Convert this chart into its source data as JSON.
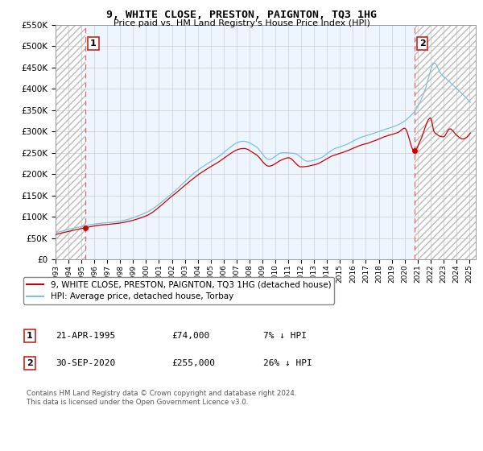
{
  "title": "9, WHITE CLOSE, PRESTON, PAIGNTON, TQ3 1HG",
  "subtitle": "Price paid vs. HM Land Registry's House Price Index (HPI)",
  "ylim": [
    0,
    550000
  ],
  "yticks": [
    0,
    50000,
    100000,
    150000,
    200000,
    250000,
    300000,
    350000,
    400000,
    450000,
    500000,
    550000
  ],
  "xmin": 1993.0,
  "xmax": 2025.5,
  "xticks": [
    1993,
    1994,
    1995,
    1996,
    1997,
    1998,
    1999,
    2000,
    2001,
    2002,
    2003,
    2004,
    2005,
    2006,
    2007,
    2008,
    2009,
    2010,
    2011,
    2012,
    2013,
    2014,
    2015,
    2016,
    2017,
    2018,
    2019,
    2020,
    2021,
    2022,
    2023,
    2024,
    2025
  ],
  "hpi_color": "#7fbfdf",
  "price_color": "#cc0000",
  "marker1_date": 1995.29,
  "marker1_value": 74000,
  "marker2_date": 2020.75,
  "marker2_value": 255000,
  "vline1_x": 1995.29,
  "vline2_x": 2020.75,
  "legend_line1": "9, WHITE CLOSE, PRESTON, PAIGNTON, TQ3 1HG (detached house)",
  "legend_line2": "HPI: Average price, detached house, Torbay",
  "footer": "Contains HM Land Registry data © Crown copyright and database right 2024.\nThis data is licensed under the Open Government Licence v3.0.",
  "grid_color": "#cccccc"
}
